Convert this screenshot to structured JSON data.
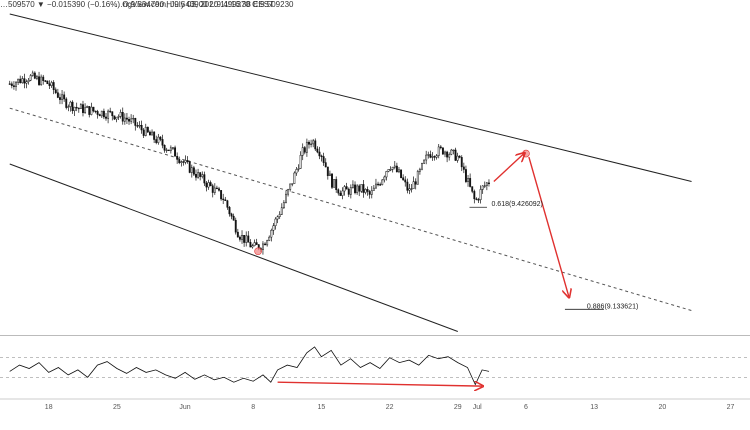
{
  "header": {
    "text": "…509570 ▼ −0.015390 (−0.16%) O:9.534790 H:9.543900 L:9.499370 C:9.509230",
    "source": "…ngView.com, July 03, 2020 11:16:38 EEST"
  },
  "colors": {
    "background": "#ffffff",
    "candle": "#111111",
    "channel_line": "#222222",
    "midline": "#555555",
    "oscillator": "#111111",
    "arrow": "#e0312f",
    "marker": "#f08080",
    "separator": "#bbbbbb"
  },
  "chart_data": [
    {
      "type": "candlestick",
      "x_ticks": [
        {
          "label": "18",
          "day": 18
        },
        {
          "label": "25",
          "day": 25
        },
        {
          "label": "Jun",
          "day": 32
        },
        {
          "label": "8",
          "day": 39
        },
        {
          "label": "15",
          "day": 46
        },
        {
          "label": "22",
          "day": 53
        },
        {
          "label": "29",
          "day": 60
        },
        {
          "label": "Jul",
          "day": 62
        },
        {
          "label": "6",
          "day": 67
        },
        {
          "label": "13",
          "day": 74
        },
        {
          "label": "20",
          "day": 81
        },
        {
          "label": "27",
          "day": 88
        }
      ],
      "price_path": [
        [
          14,
          9.78
        ],
        [
          16,
          9.8
        ],
        [
          18,
          9.78
        ],
        [
          19.5,
          9.73
        ],
        [
          21,
          9.71
        ],
        [
          23,
          9.7
        ],
        [
          25,
          9.69
        ],
        [
          26,
          9.68
        ],
        [
          27,
          9.66
        ],
        [
          29,
          9.62
        ],
        [
          31,
          9.58
        ],
        [
          32,
          9.55
        ],
        [
          34,
          9.5
        ],
        [
          36,
          9.45
        ],
        [
          37.5,
          9.35
        ],
        [
          39,
          9.31
        ],
        [
          40,
          9.32
        ],
        [
          41,
          9.37
        ],
        [
          42,
          9.43
        ],
        [
          43,
          9.5
        ],
        [
          44,
          9.58
        ],
        [
          45,
          9.62
        ],
        [
          46,
          9.58
        ],
        [
          47,
          9.5
        ],
        [
          48,
          9.47
        ],
        [
          50,
          9.48
        ],
        [
          51,
          9.46
        ],
        [
          52,
          9.5
        ],
        [
          53,
          9.55
        ],
        [
          54,
          9.52
        ],
        [
          55,
          9.47
        ],
        [
          56,
          9.52
        ],
        [
          57,
          9.58
        ],
        [
          58.5,
          9.59
        ],
        [
          60,
          9.57
        ],
        [
          61,
          9.5
        ],
        [
          61.8,
          9.44
        ],
        [
          62.5,
          9.48
        ],
        [
          63.2,
          9.5
        ]
      ],
      "channel_upper": {
        "from": [
          14,
          9.98
        ],
        "to": [
          84,
          9.5
        ]
      },
      "channel_mid": {
        "from": [
          14,
          9.71
        ],
        "to": [
          84,
          9.13
        ]
      },
      "channel_lower": {
        "from": [
          14,
          9.55
        ],
        "to": [
          60,
          9.07
        ]
      },
      "projection_arrows": [
        {
          "from": [
            63.7,
            9.5
          ],
          "to": [
            66.8,
            9.58
          ]
        },
        {
          "from": [
            67.3,
            9.57
          ],
          "to": [
            71.4,
            9.17
          ]
        }
      ],
      "touch_markers": [
        [
          39.5,
          9.3
        ],
        [
          67.0,
          9.58
        ]
      ],
      "fib_levels": [
        {
          "label": "0.618(9.426092)",
          "value": 9.426092,
          "from": 61.2,
          "to": 63.0
        },
        {
          "label": "0.886(9.133621)",
          "value": 9.133621,
          "from": 71.0,
          "to": 75.0
        }
      ],
      "ylim": [
        9.06,
        10.02
      ],
      "xlim": [
        13,
        90
      ],
      "grid": false
    },
    {
      "type": "line",
      "name": "",
      "ylim": [
        0,
        100
      ],
      "guide_levels": [
        70,
        30
      ],
      "path": [
        [
          14,
          42
        ],
        [
          15,
          55
        ],
        [
          16,
          48
        ],
        [
          17,
          60
        ],
        [
          18,
          40
        ],
        [
          19,
          50
        ],
        [
          20,
          35
        ],
        [
          21,
          45
        ],
        [
          22,
          30
        ],
        [
          23,
          55
        ],
        [
          24,
          62
        ],
        [
          25,
          48
        ],
        [
          26,
          38
        ],
        [
          27,
          50
        ],
        [
          28,
          40
        ],
        [
          29,
          45
        ],
        [
          30,
          35
        ],
        [
          31,
          28
        ],
        [
          32,
          40
        ],
        [
          33,
          26
        ],
        [
          34,
          35
        ],
        [
          35,
          25
        ],
        [
          36,
          30
        ],
        [
          37,
          20
        ],
        [
          38,
          28
        ],
        [
          39,
          22
        ],
        [
          40,
          35
        ],
        [
          40.8,
          20
        ],
        [
          41.5,
          45
        ],
        [
          42.5,
          55
        ],
        [
          43.5,
          50
        ],
        [
          44.5,
          80
        ],
        [
          45.3,
          92
        ],
        [
          46,
          72
        ],
        [
          47,
          85
        ],
        [
          48,
          55
        ],
        [
          49,
          68
        ],
        [
          50,
          50
        ],
        [
          51,
          60
        ],
        [
          52,
          48
        ],
        [
          53,
          70
        ],
        [
          54,
          60
        ],
        [
          55,
          65
        ],
        [
          56,
          55
        ],
        [
          57,
          75
        ],
        [
          58,
          68
        ],
        [
          59,
          72
        ],
        [
          60,
          60
        ],
        [
          61,
          50
        ],
        [
          61.8,
          15
        ],
        [
          62.5,
          45
        ],
        [
          63.2,
          42
        ]
      ],
      "divergence_line": {
        "from": [
          41.5,
          20
        ],
        "to": [
          62.5,
          12
        ]
      }
    }
  ]
}
